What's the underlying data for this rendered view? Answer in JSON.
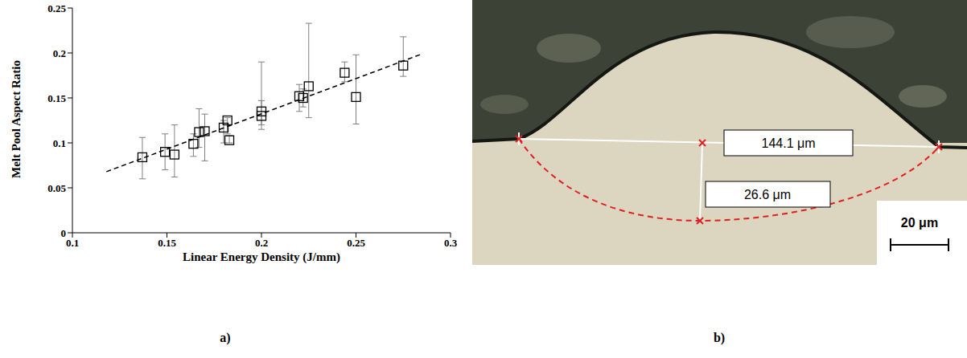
{
  "chart_data": {
    "type": "scatter",
    "panel_label": "a)",
    "x_label": "Linear Energy Density (J/mm)",
    "y_label": "Melt Pool Aspect Ratio",
    "xlim": [
      0.1,
      0.3
    ],
    "xticks": [
      0.1,
      0.15,
      0.2,
      0.25,
      0.3
    ],
    "ylim": [
      0,
      0.25
    ],
    "yticks": [
      0,
      0.05,
      0.1,
      0.15,
      0.2,
      0.25
    ],
    "grid": false,
    "series": [
      {
        "type": "scatter",
        "marker": "square",
        "color": "#000000",
        "x": [
          0.137,
          0.149,
          0.154,
          0.164,
          0.167,
          0.17,
          0.18,
          0.182,
          0.183,
          0.2,
          0.2,
          0.22,
          0.222,
          0.225,
          0.244,
          0.25,
          0.275
        ],
        "values": [
          0.084,
          0.09,
          0.087,
          0.099,
          0.112,
          0.113,
          0.117,
          0.125,
          0.103,
          0.13,
          0.135,
          0.152,
          0.15,
          0.163,
          0.178,
          0.151,
          0.186
        ],
        "error_low": [
          0.06,
          0.07,
          0.062,
          0.085,
          0.095,
          0.08,
          0.1,
          0.11,
          0.1,
          0.115,
          0.12,
          0.135,
          0.14,
          0.128,
          0.168,
          0.121,
          0.174
        ],
        "error_high": [
          0.106,
          0.11,
          0.12,
          0.11,
          0.138,
          0.132,
          0.125,
          0.128,
          0.108,
          0.147,
          0.19,
          0.165,
          0.16,
          0.233,
          0.19,
          0.198,
          0.218
        ]
      },
      {
        "type": "line",
        "line_style": "dashed",
        "color": "#000000",
        "x": [
          0.118,
          0.285
        ],
        "values": [
          0.068,
          0.199
        ]
      }
    ]
  },
  "figure_b": {
    "panel_label": "b)",
    "width_label": "144.1 μm",
    "depth_label": "26.6 μm",
    "scale_bar": "20 μm"
  }
}
